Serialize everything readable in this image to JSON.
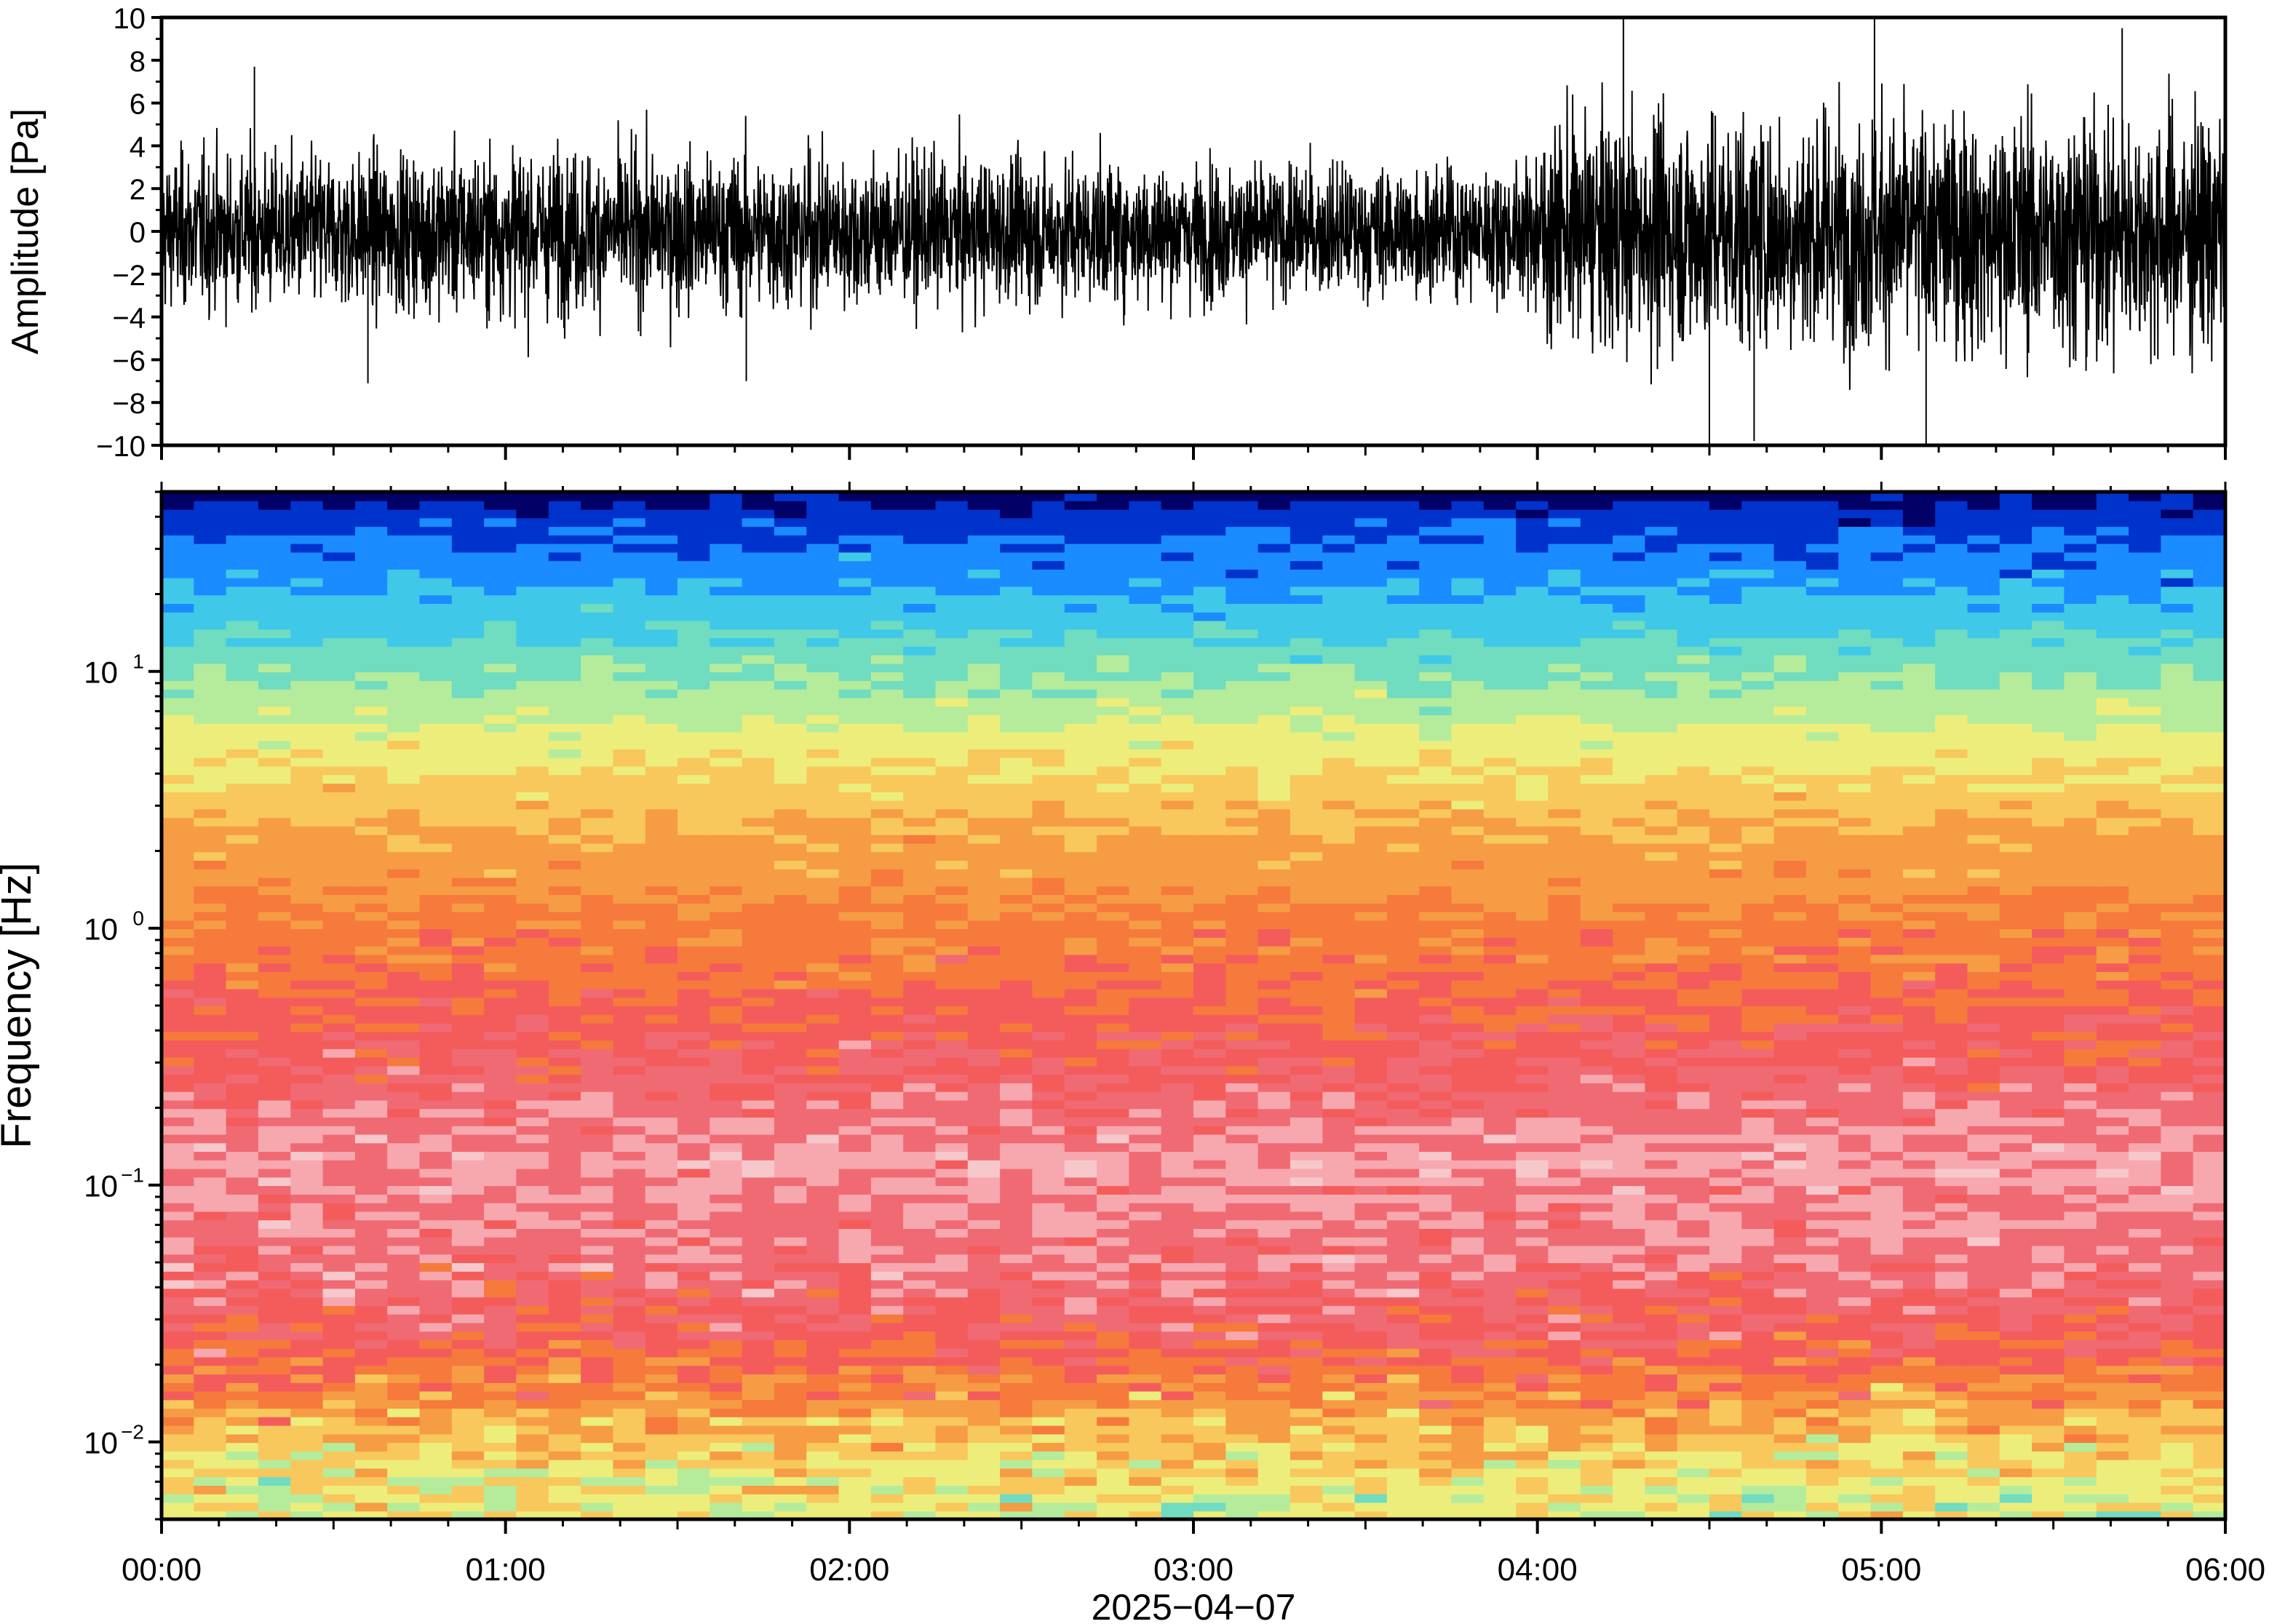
{
  "chart_data": [
    {
      "type": "line",
      "title": "",
      "xlabel": "",
      "ylabel": "Amplitude [Pa]",
      "ylim": [
        -10,
        10
      ],
      "yticks": [
        "10",
        "8",
        "6",
        "4",
        "2",
        "0",
        "−2",
        "−4",
        "−6",
        "−8",
        "−10"
      ],
      "ytick_values": [
        10,
        8,
        6,
        4,
        2,
        0,
        -2,
        -4,
        -6,
        -8,
        -10
      ],
      "x_range_hours": [
        0,
        6
      ],
      "series": [
        {
          "color": "#000000",
          "envelope_hours": [
            0,
            0.5,
            1,
            1.5,
            2,
            2.5,
            3,
            3.5,
            3.98,
            4.02,
            4.5,
            5,
            5.5,
            6
          ],
          "envelope_amplitude_pa": [
            4.5,
            4.5,
            4.8,
            4.6,
            4.5,
            4.3,
            4.0,
            3.8,
            3.8,
            6.5,
            7.0,
            7.0,
            7.0,
            7.0
          ],
          "peak_events": [
            {
              "t": 0.27,
              "v": 7.7
            },
            {
              "t": 0.6,
              "v": -7.1
            },
            {
              "t": 1.7,
              "v": -7.0
            },
            {
              "t": 4.25,
              "v": 10
            },
            {
              "t": 4.5,
              "v": -10
            },
            {
              "t": 4.63,
              "v": -9.8
            },
            {
              "t": 4.98,
              "v": 10
            },
            {
              "t": 5.13,
              "v": -10
            },
            {
              "t": 5.7,
              "v": 9.5
            }
          ]
        }
      ]
    },
    {
      "type": "heatmap",
      "title": "",
      "ylabel": "Frequency [Hz]",
      "xlabel": "2025−04−07",
      "yscale": "log",
      "ylim": [
        0.005,
        50
      ],
      "ytick_values": [
        10,
        1,
        0.1,
        0.01
      ],
      "ytick_base": [
        "10",
        "10",
        "10",
        "10"
      ],
      "ytick_exp": [
        "1",
        "0",
        "−1",
        "−2"
      ],
      "xticks": [
        "00:00",
        "01:00",
        "02:00",
        "03:00",
        "04:00",
        "05:00",
        "06:00"
      ],
      "xtick_hours": [
        0,
        1,
        2,
        3,
        4,
        5,
        6
      ],
      "colormap": [
        "#000066",
        "#0033cc",
        "#1a8cff",
        "#40c8e8",
        "#70dcc0",
        "#b4ec9c",
        "#eded7c",
        "#f8c85c",
        "#f69c44",
        "#f57a3c",
        "#f45c5c",
        "#f06a74",
        "#f7a8ae",
        "#f6c8cc"
      ],
      "profile_freq_hz": [
        50,
        40,
        25,
        15,
        8,
        4,
        1.5,
        0.7,
        0.3,
        0.12,
        0.05,
        0.025,
        0.015,
        0.008,
        0.005
      ],
      "profile_level": [
        0,
        1,
        2,
        3.2,
        4.8,
        6.5,
        8.2,
        9.2,
        10.3,
        11.8,
        11.2,
        10.2,
        8.5,
        6.5,
        5.8
      ]
    }
  ]
}
